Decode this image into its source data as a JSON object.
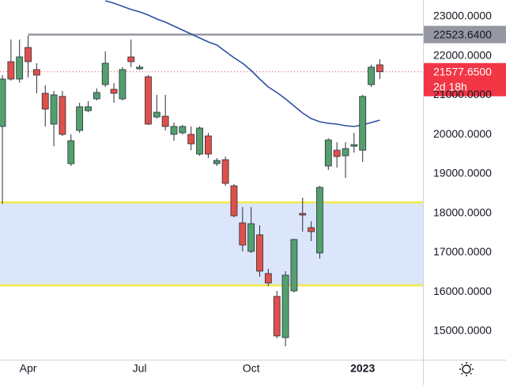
{
  "chart_data": {
    "type": "candlestick",
    "categories": [
      null,
      null,
      null,
      null,
      null,
      null,
      null,
      null,
      null,
      null,
      null,
      null,
      null,
      null,
      null,
      null,
      null,
      null,
      null,
      null,
      null,
      null,
      null,
      null,
      null,
      null,
      null,
      null,
      null,
      null,
      null,
      null,
      null,
      null,
      null,
      null,
      null,
      null,
      null,
      null,
      null,
      null,
      null,
      null,
      null
    ],
    "open": [
      20186,
      21834,
      21392,
      22196,
      21633,
      21030,
      20246,
      20950,
      19241,
      20086,
      20588,
      20889,
      21251,
      21131,
      20889,
      21955,
      21653,
      21452,
      20427,
      20447,
      19985,
      20025,
      19985,
      19483,
      19945,
      19241,
      19342,
      18678,
      17734,
      17010,
      17432,
      16447,
      15865,
      14819,
      16005,
      17975,
      17613,
      16970,
      19181,
      19583,
      19442,
      19684,
      19583,
      21251,
      21754
    ],
    "high": [
      21492,
      22397,
      22397,
      22497,
      21794,
      21231,
      21090,
      21090,
      19985,
      20789,
      20829,
      21151,
      22095,
      21291,
      21694,
      22397,
      21754,
      21492,
      20990,
      20990,
      20286,
      20226,
      20186,
      20186,
      20025,
      19382,
      19422,
      18719,
      18136,
      18136,
      17674,
      16568,
      16005,
      16508,
      17332,
      18377,
      17774,
      18678,
      19885,
      19784,
      19784,
      20025,
      20990,
      21754,
      21895
    ],
    "low": [
      18216,
      21352,
      21300,
      21432,
      21030,
      20186,
      19684,
      19945,
      19181,
      20025,
      20548,
      20849,
      21191,
      20789,
      20849,
      21694,
      21633,
      20226,
      20387,
      20085,
      19824,
      19985,
      19583,
      19442,
      19382,
      19181,
      18678,
      17875,
      17010,
      16970,
      16367,
      16126,
      14799,
      14598,
      15965,
      17513,
      17272,
      16829,
      19080,
      19141,
      18880,
      19523,
      19282,
      21191,
      21392
    ],
    "close": [
      21392,
      21392,
      21955,
      21834,
      21492,
      20628,
      20990,
      19985,
      19824,
      20688,
      20688,
      21050,
      21794,
      21030,
      21633,
      21834,
      21694,
      20246,
      20548,
      20186,
      20186,
      20186,
      19744,
      20146,
      19483,
      19322,
      18739,
      17915,
      17171,
      17714,
      16508,
      16206,
      14860,
      16407,
      17312,
      17935,
      17513,
      18638,
      19844,
      19422,
      19623,
      19724,
      20950,
      21694,
      21577.65
    ],
    "up_color": "#53a06e",
    "down_color": "#e0504a",
    "moving_average": {
      "color": "#2e4fa0",
      "values": [
        null,
        null,
        null,
        null,
        null,
        null,
        null,
        null,
        null,
        null,
        null,
        null,
        23382,
        23322,
        23241,
        23161,
        23100,
        23020,
        22920,
        22839,
        22739,
        22638,
        22538,
        22437,
        22337,
        22256,
        22095,
        21935,
        21794,
        21613,
        21392,
        21191,
        21050,
        20889,
        20709,
        20528,
        20387,
        20307,
        20266,
        20246,
        20206,
        20186,
        20226,
        20286,
        20347
      ]
    },
    "zone": {
      "low": 16146,
      "high": 18256,
      "fill": "#dbe6fb",
      "border": "#f3e84a"
    },
    "levels": [
      {
        "value": 22523.64,
        "label": "22523.6400",
        "color": "#9598a1"
      },
      {
        "value": 21577.65,
        "label": "21577.6500",
        "countdown": "2d 18h",
        "color": "#f23645"
      }
    ],
    "ylim": [
      14256,
      23402
    ],
    "yticks": [
      {
        "value": 15000,
        "label": "15000.0000"
      },
      {
        "value": 16000,
        "label": "16000.0000"
      },
      {
        "value": 17000,
        "label": "17000.0000"
      },
      {
        "value": 18000,
        "label": "18000.0000"
      },
      {
        "value": 19000,
        "label": "19000.0000"
      },
      {
        "value": 20000,
        "label": "20000.0000"
      },
      {
        "value": 21000,
        "label": "21000.0000"
      },
      {
        "value": 22000,
        "label": "22000.0000"
      },
      {
        "value": 23000,
        "label": "23000.0000"
      }
    ],
    "xticks": [
      {
        "value": 3,
        "label": "Apr"
      },
      {
        "value": 16,
        "label": "Jul"
      },
      {
        "value": 29,
        "label": "Oct"
      },
      {
        "value": 42,
        "label": "2023"
      }
    ],
    "grid": false
  }
}
